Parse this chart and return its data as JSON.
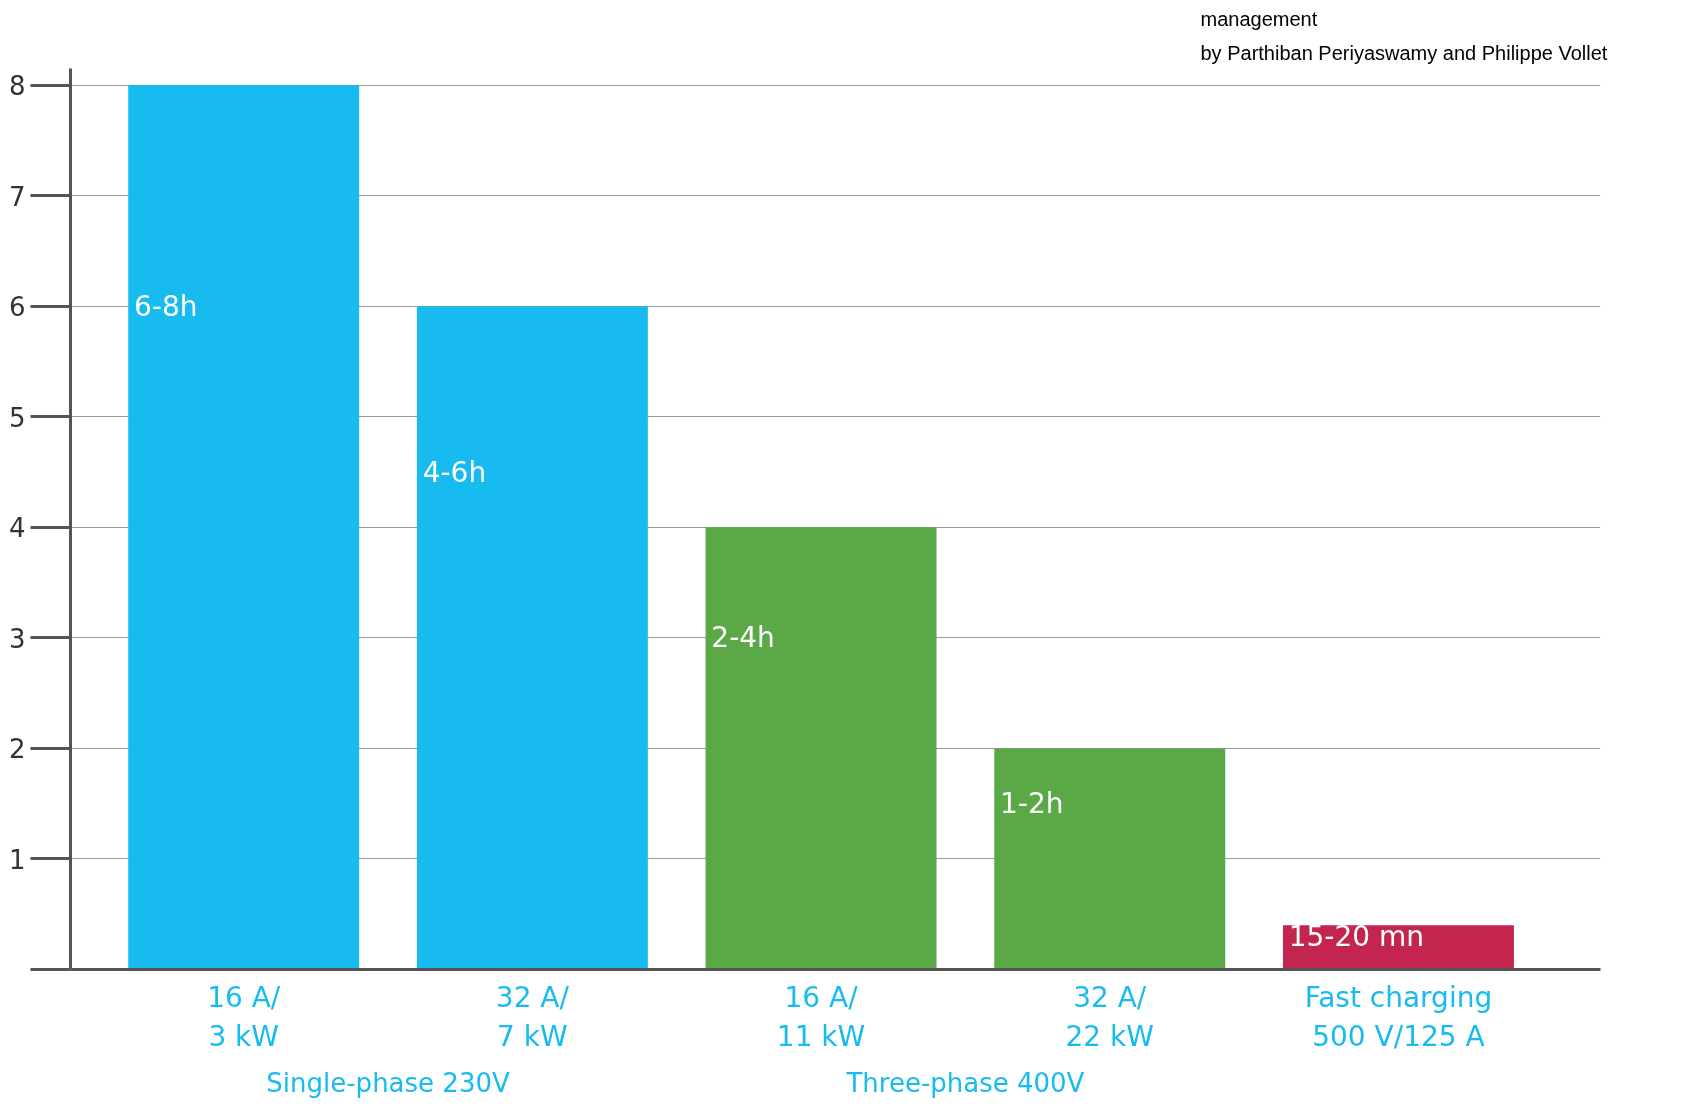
{
  "chart_data": {
    "type": "bar",
    "categories": [
      "16 A/\n3 kW",
      "32 A/\n7 kW",
      "16 A/\n11 kW",
      "32 A/\n22 kW",
      "Fast charging\n500 V/125 A"
    ],
    "values": [
      8,
      6,
      4,
      2,
      0.4
    ],
    "colors": [
      "#17bbef",
      "#17bbef",
      "#5aa846",
      "#5aa846",
      "#c3254f"
    ],
    "value_labels": [
      "6-8h",
      "4-6h",
      "2-4h",
      "1-2h",
      "15-20 mn"
    ],
    "ylim": [
      0,
      8.15
    ],
    "yticks": [
      {
        "value": 0,
        "label": null
      },
      1,
      2,
      3,
      4,
      5,
      6,
      7,
      8
    ],
    "grid": "y",
    "annotations": [
      "management",
      "by Parthiban Periyaswamy and Philippe Vollet",
      "Single-phase 230V",
      "Three-phase 400V"
    ]
  }
}
